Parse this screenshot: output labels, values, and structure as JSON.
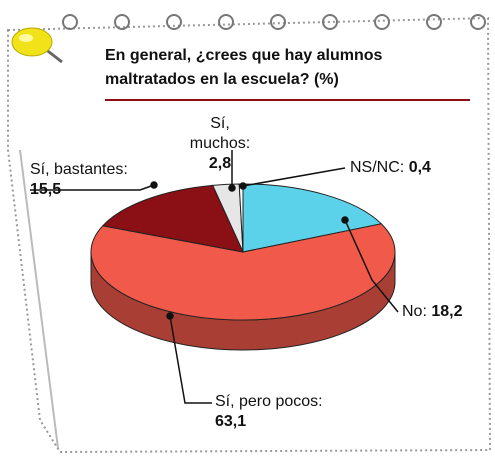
{
  "chart_data": {
    "type": "pie",
    "title": "En general, ¿crees que hay alumnos maltratados en la escuela? (%)",
    "categories": [
      "Sí, muchos:",
      "NS/NC:",
      "No:",
      "Sí, pero pocos:",
      "Sí, bastantes:"
    ],
    "values": [
      2.8,
      0.4,
      18.2,
      63.1,
      15.5
    ],
    "value_labels": [
      "2,8",
      "0,4",
      "18,2",
      "63,1",
      "15,5"
    ],
    "colors": [
      "#e6e6e6",
      "#ffffff",
      "#5cd2ea",
      "#f15a4a",
      "#8a1016"
    ]
  }
}
